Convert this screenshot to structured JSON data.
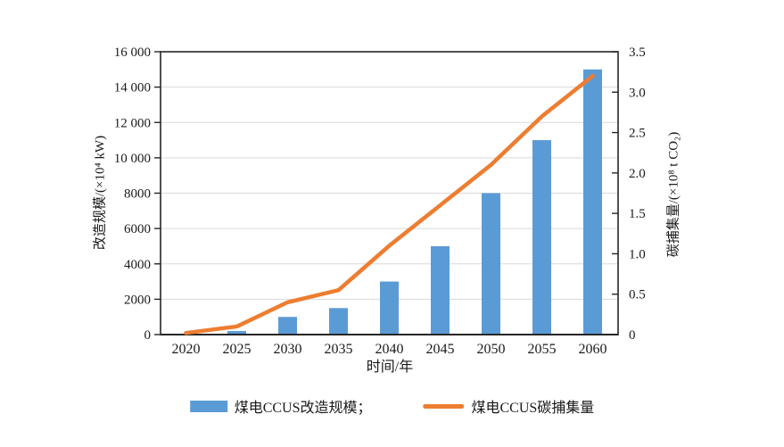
{
  "figure": {
    "x_axis_title": "时间/年",
    "left_axis_title": "改造规模/(×10⁴ kW)",
    "right_axis_title": "碳捕集量/(×10⁸ t CO₂)"
  },
  "legend": {
    "bar_label": "煤电CCUS改造规模；",
    "line_label": "煤电CCUS碳捕集量"
  },
  "colors": {
    "bar": "#5B9BD5",
    "line": "#ED7D31",
    "grid": "#D9D9D9",
    "axis": "#262626",
    "text": "#1A1A1A"
  },
  "chart_data": {
    "type": "bar",
    "subtype": "combo-bar-line-dual-axis",
    "categories": [
      "2020",
      "2025",
      "2030",
      "2035",
      "2040",
      "2045",
      "2050",
      "2055",
      "2060"
    ],
    "series": [
      {
        "name": "煤电CCUS改造规模",
        "type": "bar",
        "axis": "left",
        "color": "#5B9BD5",
        "values": [
          0,
          200,
          1000,
          1500,
          3000,
          5000,
          8000,
          11000,
          15000
        ]
      },
      {
        "name": "煤电CCUS碳捕集量",
        "type": "line",
        "axis": "right",
        "color": "#ED7D31",
        "values": [
          0.02,
          0.1,
          0.4,
          0.55,
          1.1,
          1.6,
          2.1,
          2.7,
          3.2
        ]
      }
    ],
    "xlabel": "时间/年",
    "left_axis": {
      "label": "改造规模/(×10⁴ kW)",
      "min": 0,
      "max": 16000,
      "tick_step": 2000,
      "tick_labels": [
        "0",
        "2000",
        "4000",
        "6000",
        "8000",
        "10 000",
        "12 000",
        "14 000",
        "16 000"
      ]
    },
    "right_axis": {
      "label": "碳捕集量/(×10⁸ t CO₂)",
      "min": 0,
      "max": 3.5,
      "tick_step": 0.5,
      "tick_labels": [
        "0",
        "0.5",
        "1.0",
        "1.5",
        "2.0",
        "2.5",
        "3.0",
        "3.5"
      ]
    },
    "grid": true,
    "legend_position": "bottom"
  }
}
